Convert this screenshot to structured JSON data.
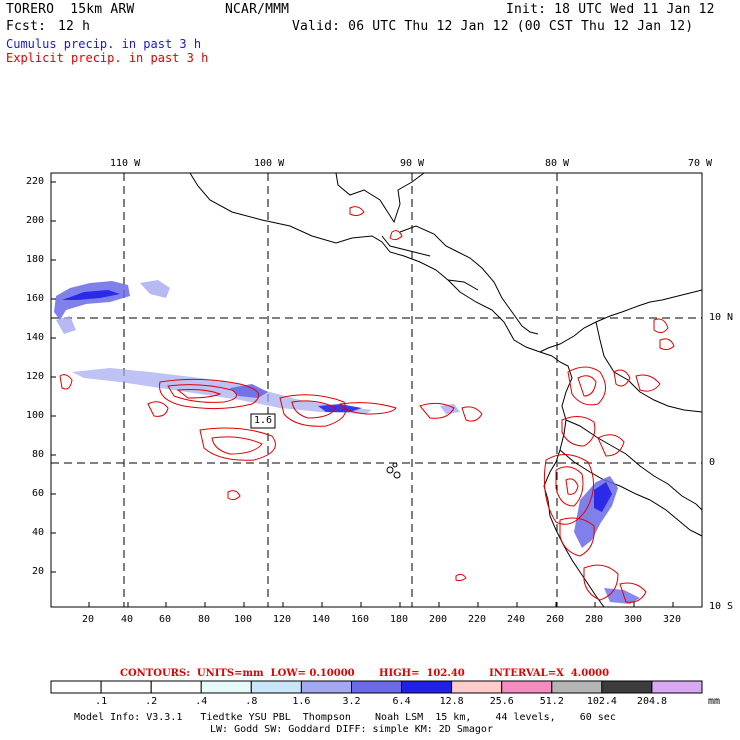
{
  "header": {
    "model": "TORERO  15km ARW",
    "org": "NCAR/MMM",
    "init": "Init: 18 UTC Wed 11 Jan 12",
    "fcst_label": "Fcst:",
    "fcst_value": "12 h",
    "valid": "Valid: 06 UTC Thu 12 Jan 12 (00 CST Thu 12 Jan 12)"
  },
  "legend": {
    "cumulus": "Cumulus precip. in past 3 h",
    "explicit": "Explicit precip. in past 3 h",
    "cumulus_color": "#1a1acc",
    "explicit_color": "#e00000"
  },
  "top_axis": {
    "labels": [
      "110 W",
      "100 W",
      "90 W",
      "80 W",
      "70 W"
    ]
  },
  "right_axis": {
    "labels": [
      "10 N",
      "0",
      "10 S"
    ]
  },
  "y_axis": {
    "ticks": [
      "220",
      "200",
      "180",
      "160",
      "140",
      "120",
      "100",
      "80",
      "60",
      "40",
      "20"
    ]
  },
  "x_axis": {
    "ticks": [
      "20",
      "40",
      "60",
      "80",
      "100",
      "120",
      "140",
      "160",
      "180",
      "200",
      "220",
      "240",
      "260",
      "280",
      "300",
      "320"
    ]
  },
  "contour_label": "1.6",
  "contours_info": {
    "text": "CONTOURS:  UNITS=mm  LOW= 0.10000       HIGH=  102.40       INTERVAL=X  4.0000"
  },
  "colorbar": {
    "labels": [
      ".1",
      ".2",
      ".4",
      ".8",
      "1.6",
      "3.2",
      "6.4",
      "12.8",
      "25.6",
      "51.2",
      "102.4",
      "204.8"
    ],
    "unit": "mm",
    "colors": [
      "#ffffff",
      "#ffffff",
      "#ffffff",
      "#e6fafa",
      "#c8e6f8",
      "#a4a8f0",
      "#6a6ae8",
      "#2020e8",
      "#ffcccc",
      "#f48cc0",
      "#b4b4b4",
      "#3c3c3c",
      "#d8a8f4"
    ]
  },
  "footer": {
    "line1": "Model Info: V3.3.1   Tiedtke YSU PBL  Thompson    Noah LSM  15 km,    44 levels,    60 sec",
    "line2": "LW: Godd SW: Goddard DIFF: simple KM: 2D Smagor"
  }
}
